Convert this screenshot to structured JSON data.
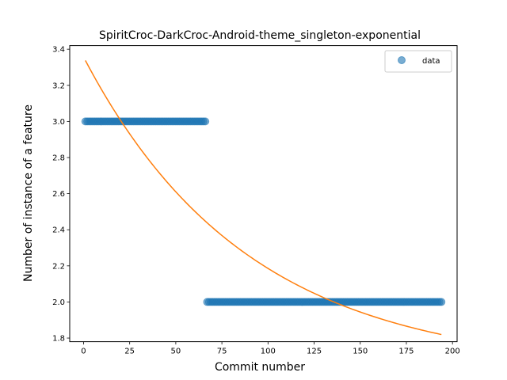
{
  "chart_data": {
    "type": "scatter",
    "title": "SpiritCroc-DarkCroc-Android-theme_singleton-exponential",
    "xlabel": "Commit number",
    "ylabel": "Number of instance of a feature",
    "xlim": [
      -7.5,
      202.5
    ],
    "ylim": [
      1.78,
      3.42
    ],
    "xticks": [
      0,
      25,
      50,
      75,
      100,
      125,
      150,
      175,
      200
    ],
    "yticks": [
      1.8,
      2.0,
      2.2,
      2.4,
      2.6,
      2.8,
      3.0,
      3.2,
      3.4
    ],
    "ytick_labels": [
      "1.8",
      "2.0",
      "2.2",
      "2.4",
      "2.6",
      "2.8",
      "3.0",
      "3.2",
      "3.4"
    ],
    "grid": false,
    "legend": {
      "placement": "top-right",
      "entries": [
        "data"
      ]
    },
    "series": [
      {
        "name": "data",
        "kind": "scatter",
        "color": "#1f77b4",
        "segments": [
          {
            "x_start": 1,
            "x_end": 66,
            "y": 3.0
          },
          {
            "x_start": 67,
            "x_end": 194,
            "y": 2.0
          }
        ]
      },
      {
        "kind": "line",
        "color": "#ff7f0e",
        "model": "exponential",
        "x_range": [
          1,
          194
        ],
        "params": {
          "a": 1.731,
          "b": 0.01129,
          "c": 1.626
        }
      }
    ]
  }
}
